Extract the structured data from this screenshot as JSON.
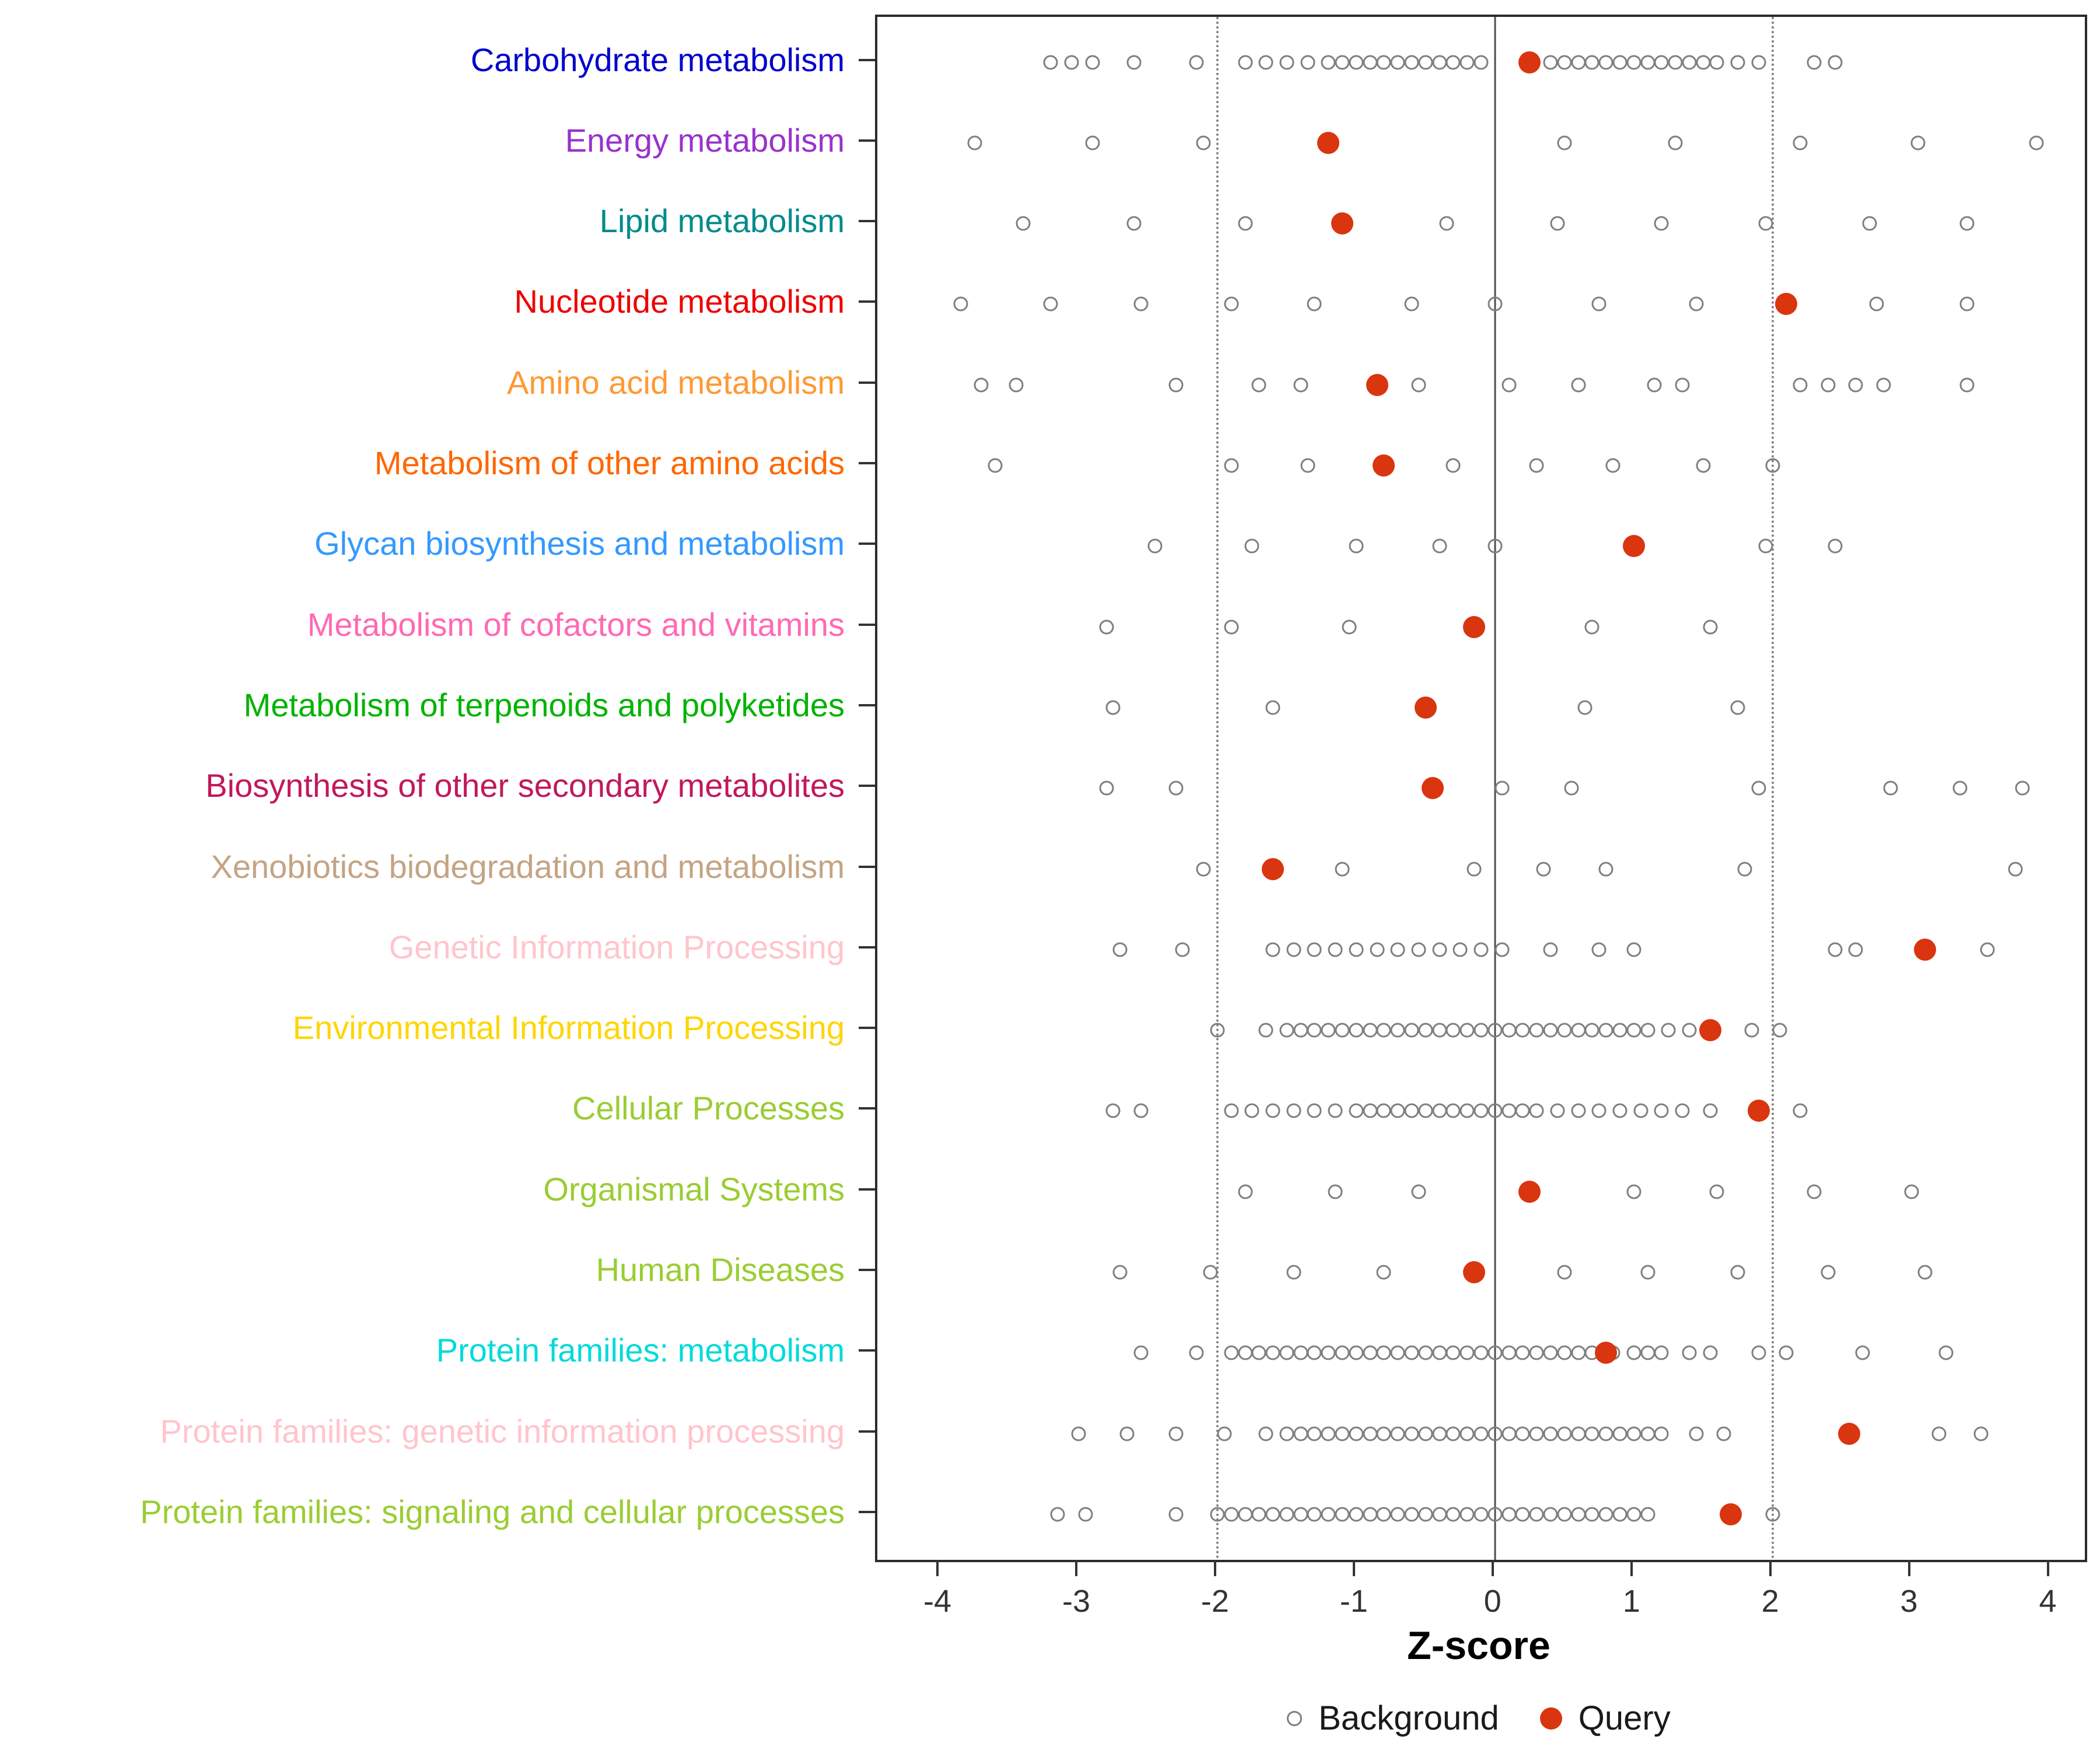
{
  "chart_data": {
    "type": "scatter",
    "title": "",
    "xlabel": "Z-score",
    "xlim": [
      -4.45,
      4.25
    ],
    "x_ticks": [
      -4,
      -3,
      -2,
      -1,
      0,
      1,
      2,
      3,
      4
    ],
    "grid": false,
    "reference_lines": {
      "solid": [
        0
      ],
      "dotted": [
        -2,
        2
      ]
    },
    "legend_position": "bottom",
    "legend": [
      {
        "label": "Background",
        "marker": "open-circle",
        "color": "#7f7f7f"
      },
      {
        "label": "Query",
        "marker": "filled-circle",
        "color": "#d9350f"
      }
    ],
    "point_colors": {
      "background_stroke": "#7f7f7f",
      "query_fill": "#d9350f"
    },
    "categories": [
      {
        "label": "Carbohydrate metabolism",
        "color": "#0000CD",
        "query": 0.25,
        "background": [
          -3.2,
          -3.05,
          -2.9,
          -2.6,
          -2.15,
          -1.8,
          -1.65,
          -1.5,
          -1.35,
          -1.2,
          -1.1,
          -1.0,
          -0.9,
          -0.8,
          -0.7,
          -0.6,
          -0.5,
          -0.4,
          -0.3,
          -0.2,
          -0.1,
          0.4,
          0.5,
          0.6,
          0.7,
          0.8,
          0.9,
          1.0,
          1.1,
          1.2,
          1.3,
          1.4,
          1.5,
          1.6,
          1.75,
          1.9,
          2.3,
          2.45
        ]
      },
      {
        "label": "Energy metabolism",
        "color": "#9932CC",
        "query": -1.2,
        "background": [
          -3.75,
          -2.9,
          -2.1,
          0.5,
          1.3,
          2.2,
          3.05,
          3.9
        ]
      },
      {
        "label": "Lipid metabolism",
        "color": "#008B8B",
        "query": -1.1,
        "background": [
          -3.4,
          -2.6,
          -1.8,
          -0.35,
          0.45,
          1.2,
          1.95,
          2.7,
          3.4
        ]
      },
      {
        "label": "Nucleotide metabolism",
        "color": "#EE0000",
        "query": 2.1,
        "background": [
          -3.85,
          -3.2,
          -2.55,
          -1.9,
          -1.3,
          -0.6,
          0.0,
          0.75,
          1.45,
          2.75,
          3.4
        ]
      },
      {
        "label": "Amino acid metabolism",
        "color": "#FF9933",
        "query": -0.85,
        "background": [
          -3.7,
          -3.45,
          -2.3,
          -1.7,
          -1.4,
          -0.55,
          0.1,
          0.6,
          1.15,
          1.35,
          2.2,
          2.4,
          2.6,
          2.8,
          3.4
        ]
      },
      {
        "label": "Metabolism of other amino acids",
        "color": "#FF6600",
        "query": -0.8,
        "background": [
          -3.6,
          -1.9,
          -1.35,
          -0.3,
          0.3,
          0.85,
          1.5,
          2.0
        ]
      },
      {
        "label": "Glycan biosynthesis and metabolism",
        "color": "#3399FF",
        "query": 1.0,
        "background": [
          -2.45,
          -1.75,
          -1.0,
          -0.4,
          0.0,
          1.95,
          2.45
        ]
      },
      {
        "label": "Metabolism of cofactors and vitamins",
        "color": "#FF69B4",
        "query": -0.15,
        "background": [
          -2.8,
          -1.9,
          -1.05,
          0.7,
          1.55
        ]
      },
      {
        "label": "Metabolism of terpenoids and polyketides",
        "color": "#00B300",
        "query": -0.5,
        "background": [
          -2.75,
          -1.6,
          0.65,
          1.75
        ]
      },
      {
        "label": "Biosynthesis of other secondary metabolites",
        "color": "#C2185B",
        "query": -0.45,
        "background": [
          -2.8,
          -2.3,
          0.05,
          0.55,
          1.9,
          2.85,
          3.35,
          3.8
        ]
      },
      {
        "label": "Xenobiotics biodegradation and metabolism",
        "color": "#C4A484",
        "query": -1.6,
        "background": [
          -2.1,
          -1.1,
          -0.15,
          0.35,
          0.8,
          1.8,
          3.75
        ]
      },
      {
        "label": "Genetic Information Processing",
        "color": "#FFC5CB",
        "query": 3.1,
        "background": [
          -2.7,
          -2.25,
          -1.6,
          -1.45,
          -1.3,
          -1.15,
          -1.0,
          -0.85,
          -0.7,
          -0.55,
          -0.4,
          -0.25,
          -0.1,
          0.05,
          0.4,
          0.75,
          1.0,
          2.45,
          2.6,
          3.55
        ]
      },
      {
        "label": "Environmental Information Processing",
        "color": "#FFD500",
        "query": 1.55,
        "background": [
          -2.0,
          -1.65,
          -1.5,
          -1.4,
          -1.3,
          -1.2,
          -1.1,
          -1.0,
          -0.9,
          -0.8,
          -0.7,
          -0.6,
          -0.5,
          -0.4,
          -0.3,
          -0.2,
          -0.1,
          0.0,
          0.1,
          0.2,
          0.3,
          0.4,
          0.5,
          0.6,
          0.7,
          0.8,
          0.9,
          1.0,
          1.1,
          1.25,
          1.4,
          1.85,
          2.05
        ]
      },
      {
        "label": "Cellular Processes",
        "color": "#9ACD32",
        "query": 1.9,
        "background": [
          -2.75,
          -2.55,
          -1.9,
          -1.75,
          -1.6,
          -1.45,
          -1.3,
          -1.15,
          -1.0,
          -0.9,
          -0.8,
          -0.7,
          -0.6,
          -0.5,
          -0.4,
          -0.3,
          -0.2,
          -0.1,
          0.0,
          0.1,
          0.2,
          0.3,
          0.45,
          0.6,
          0.75,
          0.9,
          1.05,
          1.2,
          1.35,
          1.55,
          2.2
        ]
      },
      {
        "label": "Organismal Systems",
        "color": "#9ACD32",
        "query": 0.25,
        "background": [
          -1.8,
          -1.15,
          -0.55,
          1.0,
          1.6,
          2.3,
          3.0
        ]
      },
      {
        "label": "Human Diseases",
        "color": "#9ACD32",
        "query": -0.15,
        "background": [
          -2.7,
          -2.05,
          -1.45,
          -0.8,
          0.5,
          1.1,
          1.75,
          2.4,
          3.1
        ]
      },
      {
        "label": "Protein families: metabolism",
        "color": "#00DADA",
        "query": 0.8,
        "background": [
          -2.55,
          -2.15,
          -1.9,
          -1.8,
          -1.7,
          -1.6,
          -1.5,
          -1.4,
          -1.3,
          -1.2,
          -1.1,
          -1.0,
          -0.9,
          -0.8,
          -0.7,
          -0.6,
          -0.5,
          -0.4,
          -0.3,
          -0.2,
          -0.1,
          0.0,
          0.1,
          0.2,
          0.3,
          0.4,
          0.5,
          0.6,
          0.7,
          0.85,
          1.0,
          1.1,
          1.2,
          1.4,
          1.55,
          1.9,
          2.1,
          2.65,
          3.25
        ]
      },
      {
        "label": "Protein families: genetic information processing",
        "color": "#FFC5CB",
        "query": 2.55,
        "background": [
          -3.0,
          -2.65,
          -2.3,
          -1.95,
          -1.65,
          -1.5,
          -1.4,
          -1.3,
          -1.2,
          -1.1,
          -1.0,
          -0.9,
          -0.8,
          -0.7,
          -0.6,
          -0.5,
          -0.4,
          -0.3,
          -0.2,
          -0.1,
          0.0,
          0.1,
          0.2,
          0.3,
          0.4,
          0.5,
          0.6,
          0.7,
          0.8,
          0.9,
          1.0,
          1.1,
          1.2,
          1.45,
          1.65,
          3.2,
          3.5
        ]
      },
      {
        "label": "Protein families: signaling and cellular processes",
        "color": "#9ACD32",
        "query": 1.7,
        "background": [
          -3.15,
          -2.95,
          -2.3,
          -2.0,
          -1.9,
          -1.8,
          -1.7,
          -1.6,
          -1.5,
          -1.4,
          -1.3,
          -1.2,
          -1.1,
          -1.0,
          -0.9,
          -0.8,
          -0.7,
          -0.6,
          -0.5,
          -0.4,
          -0.3,
          -0.2,
          -0.1,
          0.0,
          0.1,
          0.2,
          0.3,
          0.4,
          0.5,
          0.6,
          0.7,
          0.8,
          0.9,
          1.0,
          1.1,
          2.0
        ]
      }
    ]
  }
}
